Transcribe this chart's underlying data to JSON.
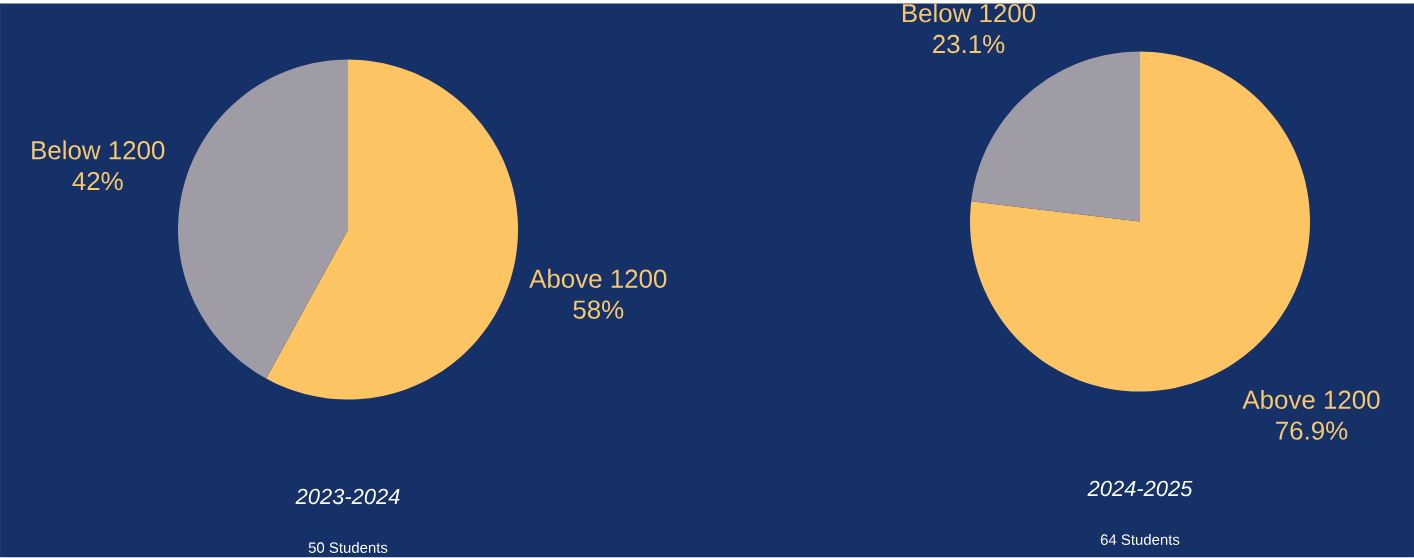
{
  "chart_data": [
    {
      "type": "pie",
      "title": "2023-2024",
      "subtitle": "50 Students",
      "categories": [
        "Above 1200",
        "Below 1200"
      ],
      "values": [
        58,
        42
      ],
      "colors": [
        "#fcc463",
        "#a09ca6"
      ],
      "value_labels": [
        "58%",
        "42%"
      ]
    },
    {
      "type": "pie",
      "title": "2024-2025",
      "subtitle": "64 Students",
      "categories": [
        "Above 1200",
        "Below 1200"
      ],
      "values": [
        76.9,
        23.1
      ],
      "colors": [
        "#fcc463",
        "#a09ca6"
      ],
      "value_labels": [
        "76.9%",
        "23.1%"
      ]
    }
  ]
}
